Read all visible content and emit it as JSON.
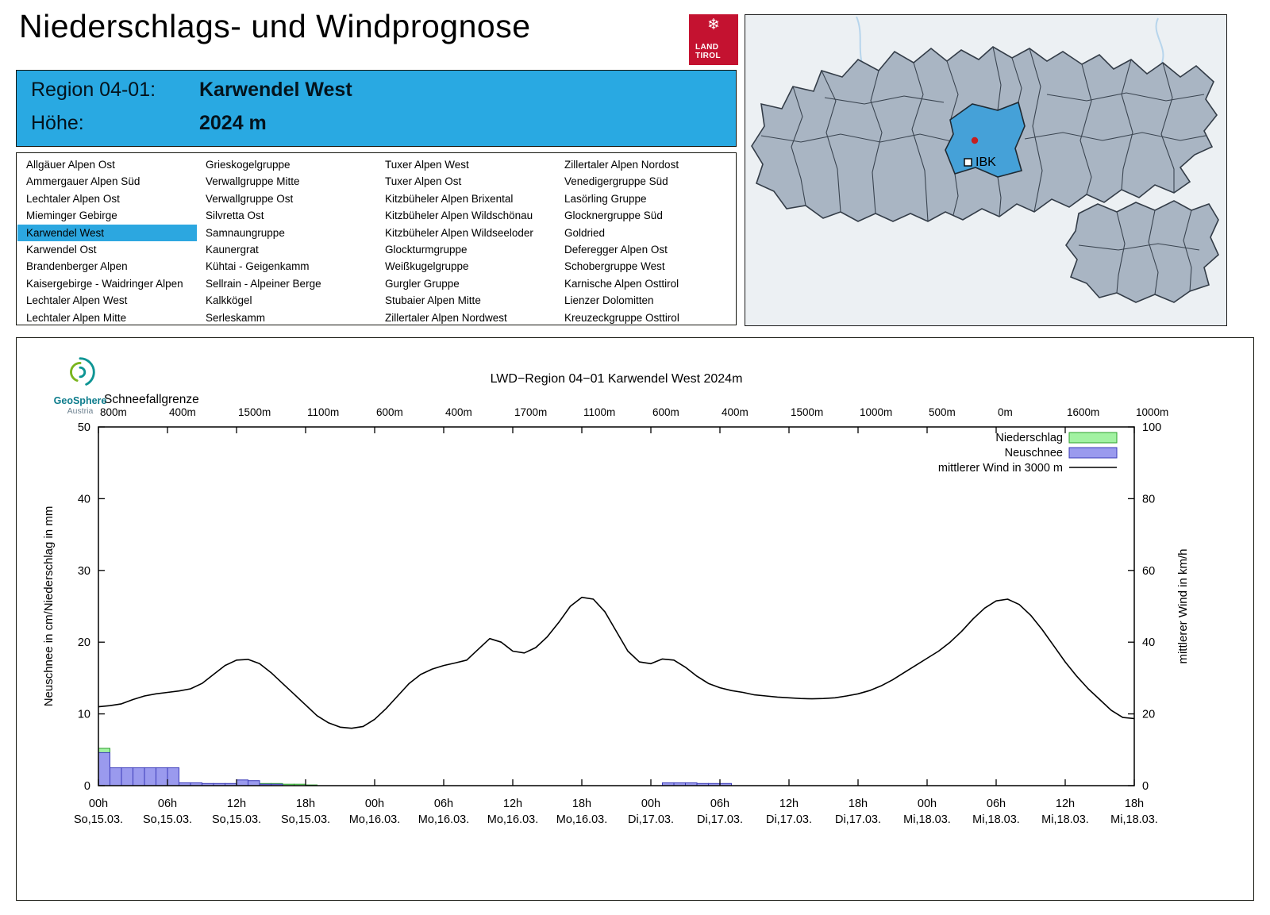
{
  "page": {
    "title": "Niederschlags- und Windprognose"
  },
  "logo": {
    "snowflake": "❄",
    "line1": "LAND",
    "line2": "TIROL"
  },
  "colors": {
    "accent_blue": "#29a9e2",
    "selection_blue": "#2ca7e0",
    "tirol_red": "#c41230",
    "map_region_fill": "#a9b5c3",
    "map_selected_fill": "#45a1d8"
  },
  "region_header": {
    "region_label": "Region 04-01:",
    "region_name": "Karwendel West",
    "altitude_label": "Höhe:",
    "altitude_value": "2024 m"
  },
  "region_list": {
    "selected": "Karwendel West",
    "columns": [
      [
        "Allgäuer Alpen Ost",
        "Ammergauer Alpen Süd",
        "Lechtaler Alpen Ost",
        "Mieminger Gebirge",
        "Karwendel West",
        "Karwendel Ost",
        "Brandenberger Alpen",
        "Kaisergebirge - Waidringer Alpen",
        "Lechtaler Alpen West",
        "Lechtaler Alpen Mitte"
      ],
      [
        "Grieskogelgruppe",
        "Verwallgruppe Mitte",
        "Verwallgruppe Ost",
        "Silvretta Ost",
        "Samnaungruppe",
        "Kaunergrat",
        "Kühtai - Geigenkamm",
        "Sellrain - Alpeiner Berge",
        "Kalkkögel",
        "Serleskamm"
      ],
      [
        "Tuxer Alpen West",
        "Tuxer Alpen Ost",
        "Kitzbüheler Alpen Brixental",
        "Kitzbüheler Alpen Wildschönau",
        "Kitzbüheler Alpen Wildseeloder",
        "Glockturmgruppe",
        "Weißkugelgruppe",
        "Gurgler Gruppe",
        "Stubaier Alpen Mitte",
        "Zillertaler Alpen Nordwest"
      ],
      [
        "Zillertaler Alpen Nordost",
        "Venedigergruppe Süd",
        "Lasörling Gruppe",
        "Glocknergruppe Süd",
        "Goldried",
        "Deferegger Alpen Ost",
        "Schobergruppe West",
        "Karnische Alpen Osttirol",
        "Lienzer Dolomitten",
        "Kreuzeckgruppe Osttirol"
      ]
    ]
  },
  "map": {
    "ibk_label": "IBK"
  },
  "geosphere": {
    "name": "GeoSphere",
    "country": "Austria"
  },
  "chart_data": {
    "type": "line+bar",
    "title": "LWD−Region 04−01 Karwendel West 2024m",
    "top_axis": {
      "label": "Schneefallgrenze",
      "values": [
        "800m",
        "400m",
        "1500m",
        "1100m",
        "600m",
        "400m",
        "1700m",
        "1100m",
        "600m",
        "400m",
        "1500m",
        "1000m",
        "500m",
        "0m",
        "1600m",
        "1000m"
      ]
    },
    "ylabel_left": "Neuschnee in cm/Niederschlag in mm",
    "ylabel_right": "mittlerer Wind in km/h",
    "ylim_left": [
      0,
      50
    ],
    "ylim_right": [
      0,
      100
    ],
    "yticks_left": [
      0,
      10,
      20,
      30,
      40,
      50
    ],
    "yticks_right": [
      0,
      20,
      40,
      60,
      80,
      100
    ],
    "x_hours_range": [
      0,
      90
    ],
    "x_ticks": [
      {
        "hour": "00h",
        "date": "So,15.03."
      },
      {
        "hour": "06h",
        "date": "So,15.03."
      },
      {
        "hour": "12h",
        "date": "So,15.03."
      },
      {
        "hour": "18h",
        "date": "So,15.03."
      },
      {
        "hour": "00h",
        "date": "Mo,16.03."
      },
      {
        "hour": "06h",
        "date": "Mo,16.03."
      },
      {
        "hour": "12h",
        "date": "Mo,16.03."
      },
      {
        "hour": "18h",
        "date": "Mo,16.03."
      },
      {
        "hour": "00h",
        "date": "Di,17.03."
      },
      {
        "hour": "06h",
        "date": "Di,17.03."
      },
      {
        "hour": "12h",
        "date": "Di,17.03."
      },
      {
        "hour": "18h",
        "date": "Di,17.03."
      },
      {
        "hour": "00h",
        "date": "Mi,18.03."
      },
      {
        "hour": "06h",
        "date": "Mi,18.03."
      },
      {
        "hour": "12h",
        "date": "Mi,18.03."
      },
      {
        "hour": "18h",
        "date": "Mi,18.03."
      }
    ],
    "legend": [
      {
        "label": "Niederschlag",
        "swatch": "rect",
        "fill": "#a2f2a2",
        "border": "#2ca02c"
      },
      {
        "label": "Neuschnee",
        "swatch": "rect",
        "fill": "#9a9aee",
        "border": "#3b3bb8"
      },
      {
        "label": "mittlerer Wind in 3000 m",
        "swatch": "line",
        "color": "#000000"
      }
    ],
    "wind_series": {
      "name": "mittlerer Wind in 3000 m",
      "unit": "km/h",
      "points": [
        [
          0,
          22
        ],
        [
          1,
          22.3
        ],
        [
          2,
          22.8
        ],
        [
          3,
          24
        ],
        [
          4,
          25
        ],
        [
          5,
          25.6
        ],
        [
          6,
          26
        ],
        [
          7,
          26.4
        ],
        [
          8,
          27
        ],
        [
          9,
          28.5
        ],
        [
          10,
          31
        ],
        [
          11,
          33.5
        ],
        [
          12,
          35
        ],
        [
          13,
          35.2
        ],
        [
          14,
          34
        ],
        [
          15,
          31.5
        ],
        [
          16,
          28.5
        ],
        [
          17,
          25.5
        ],
        [
          18,
          22.5
        ],
        [
          19,
          19.5
        ],
        [
          20,
          17.5
        ],
        [
          21,
          16.3
        ],
        [
          22,
          16
        ],
        [
          23,
          16.5
        ],
        [
          24,
          18.5
        ],
        [
          25,
          21.5
        ],
        [
          26,
          25
        ],
        [
          27,
          28.5
        ],
        [
          28,
          31
        ],
        [
          29,
          32.5
        ],
        [
          30,
          33.5
        ],
        [
          31,
          34.2
        ],
        [
          32,
          35
        ],
        [
          33,
          38
        ],
        [
          34,
          41
        ],
        [
          35,
          40
        ],
        [
          36,
          37.5
        ],
        [
          37,
          37
        ],
        [
          38,
          38.5
        ],
        [
          39,
          41.5
        ],
        [
          40,
          45.5
        ],
        [
          41,
          50
        ],
        [
          42,
          52.5
        ],
        [
          43,
          52
        ],
        [
          44,
          48.5
        ],
        [
          45,
          43
        ],
        [
          46,
          37.5
        ],
        [
          47,
          34.5
        ],
        [
          48,
          34
        ],
        [
          49,
          35.3
        ],
        [
          50,
          35
        ],
        [
          51,
          33
        ],
        [
          52,
          30.5
        ],
        [
          53,
          28.5
        ],
        [
          54,
          27.3
        ],
        [
          55,
          26.5
        ],
        [
          56,
          26
        ],
        [
          57,
          25.3
        ],
        [
          58,
          25
        ],
        [
          59,
          24.7
        ],
        [
          60,
          24.5
        ],
        [
          61,
          24.3
        ],
        [
          62,
          24.2
        ],
        [
          63,
          24.3
        ],
        [
          64,
          24.5
        ],
        [
          65,
          25
        ],
        [
          66,
          25.6
        ],
        [
          67,
          26.5
        ],
        [
          68,
          27.8
        ],
        [
          69,
          29.5
        ],
        [
          70,
          31.5
        ],
        [
          71,
          33.5
        ],
        [
          72,
          35.5
        ],
        [
          73,
          37.5
        ],
        [
          74,
          40
        ],
        [
          75,
          43
        ],
        [
          76,
          46.5
        ],
        [
          77,
          49.5
        ],
        [
          78,
          51.5
        ],
        [
          79,
          52
        ],
        [
          80,
          50.5
        ],
        [
          81,
          47.5
        ],
        [
          82,
          43.5
        ],
        [
          83,
          39
        ],
        [
          84,
          34.5
        ],
        [
          85,
          30.5
        ],
        [
          86,
          27
        ],
        [
          87,
          24
        ],
        [
          88,
          21
        ],
        [
          89,
          19
        ],
        [
          90,
          18.7
        ]
      ]
    },
    "precip_bars": {
      "name": "Niederschlag",
      "unit": "mm",
      "hourly": [
        [
          0,
          5.2
        ],
        [
          1,
          2.2
        ],
        [
          2,
          2.2
        ],
        [
          3,
          2.2
        ],
        [
          4,
          2.2
        ],
        [
          5,
          2.2
        ],
        [
          6,
          2.2
        ],
        [
          12,
          0.3
        ],
        [
          13,
          0.3
        ],
        [
          14,
          0.3
        ],
        [
          15,
          0.3
        ],
        [
          16,
          0.2
        ],
        [
          17,
          0.2
        ],
        [
          18,
          0.1
        ]
      ]
    },
    "snow_bars": {
      "name": "Neuschnee",
      "unit": "cm",
      "hourly": [
        [
          0,
          4.6
        ],
        [
          1,
          2.5
        ],
        [
          2,
          2.5
        ],
        [
          3,
          2.5
        ],
        [
          4,
          2.5
        ],
        [
          5,
          2.5
        ],
        [
          6,
          2.5
        ],
        [
          7,
          0.4
        ],
        [
          8,
          0.4
        ],
        [
          9,
          0.3
        ],
        [
          10,
          0.3
        ],
        [
          11,
          0.3
        ],
        [
          12,
          0.8
        ],
        [
          13,
          0.7
        ],
        [
          14,
          0.2
        ],
        [
          15,
          0.2
        ],
        [
          49,
          0.4
        ],
        [
          50,
          0.4
        ],
        [
          51,
          0.4
        ],
        [
          52,
          0.3
        ],
        [
          53,
          0.3
        ],
        [
          54,
          0.3
        ]
      ]
    }
  }
}
